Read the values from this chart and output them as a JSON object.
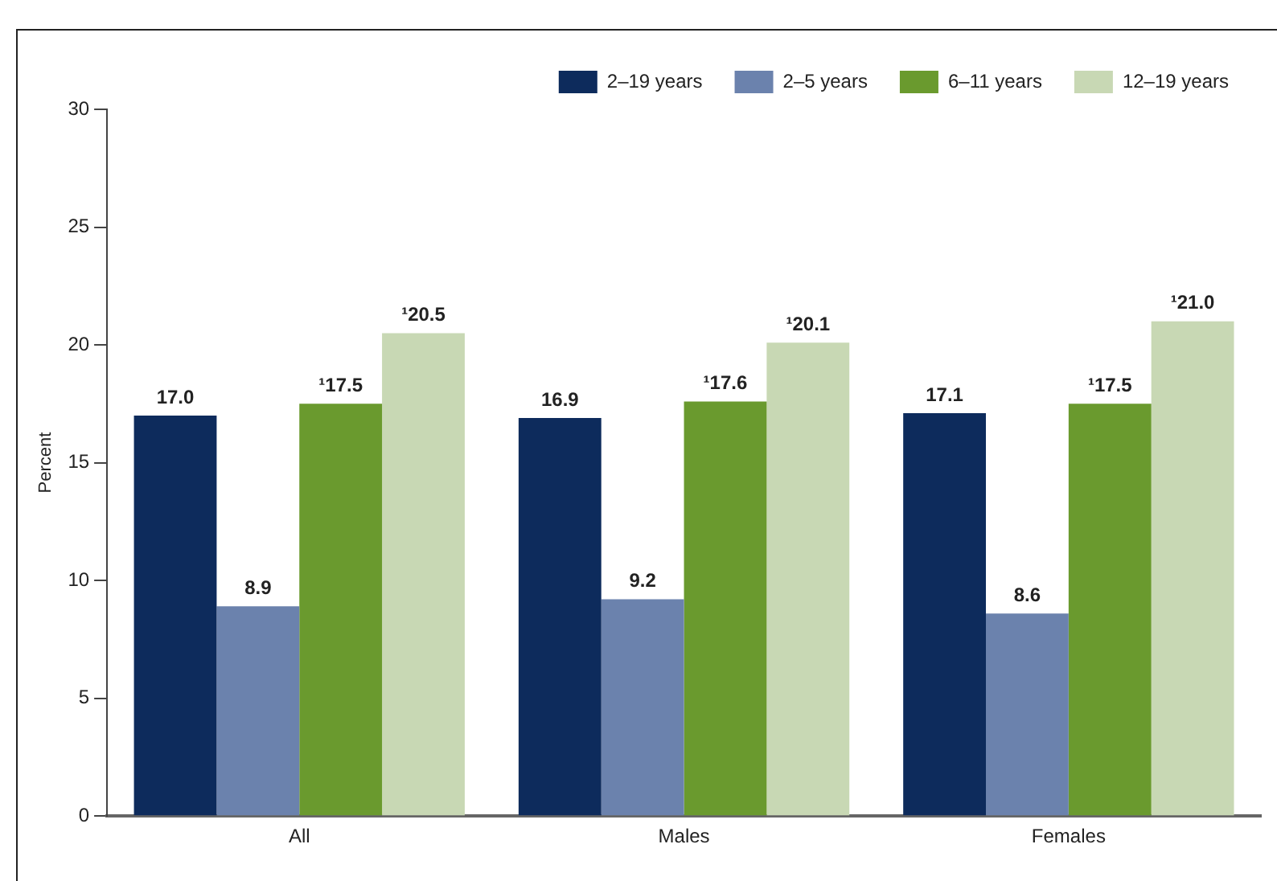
{
  "chart_data": {
    "type": "bar",
    "ylabel": "Percent",
    "categories": [
      "All",
      "Males",
      "Females"
    ],
    "series": [
      {
        "name": "2–19 years",
        "color": "#0d2b5c",
        "values": [
          17.0,
          16.9,
          17.1
        ],
        "value_labels": [
          "17.0",
          "16.9",
          "17.1"
        ]
      },
      {
        "name": "2–5 years",
        "color": "#6b82ad",
        "values": [
          8.9,
          9.2,
          8.6
        ],
        "value_labels": [
          "8.9",
          "9.2",
          "8.6"
        ]
      },
      {
        "name": "6–11 years",
        "color": "#6a9a2e",
        "values": [
          17.5,
          17.6,
          17.5
        ],
        "value_labels": [
          "¹17.5",
          "¹17.6",
          "¹17.5"
        ]
      },
      {
        "name": "12–19 years",
        "color": "#c8d8b4",
        "values": [
          20.5,
          20.1,
          21.0
        ],
        "value_labels": [
          "¹20.5",
          "¹20.1",
          "¹21.0"
        ]
      }
    ],
    "ylim": [
      0,
      30
    ],
    "yticks": [
      0,
      5,
      10,
      15,
      20,
      25,
      30
    ],
    "grid": false,
    "legend": "top right"
  }
}
